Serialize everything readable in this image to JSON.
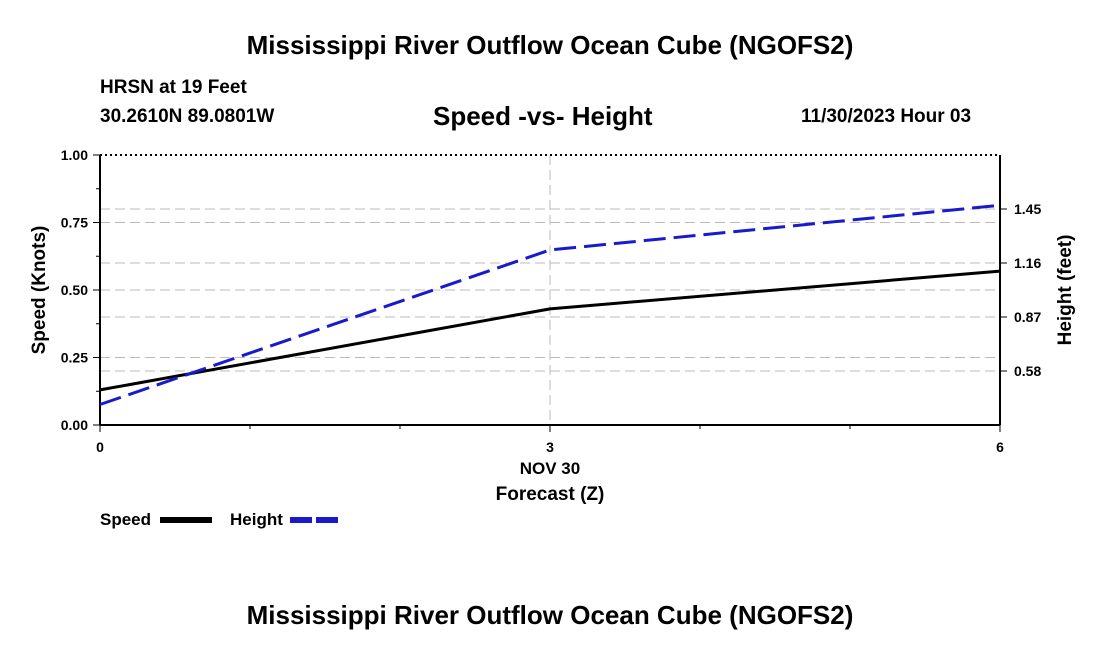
{
  "header": {
    "title": "Mississippi River Outflow Ocean Cube (NGOFS2)",
    "station": "HRSN at 19 Feet",
    "coords": "30.2610N  89.0801W",
    "date": "11/30/2023 Hour 03"
  },
  "footer": {
    "title": "Mississippi River Outflow Ocean Cube (NGOFS2)"
  },
  "colors": {
    "speed": "#000000",
    "height": "#1a1acc",
    "grid": "#bbbbbb"
  },
  "chart_data": {
    "type": "line",
    "title": "Speed -vs- Height",
    "xlabel": "Forecast (Z)",
    "x_date_label": "NOV 30",
    "ylabel": "Speed (Knots)",
    "y2label": "Height (feet)",
    "xlim": [
      0,
      6
    ],
    "ylim": [
      0,
      1
    ],
    "y2lim": [
      0.29,
      1.74
    ],
    "x_ticks": [
      0,
      3,
      6
    ],
    "x_tick_labels": [
      "0",
      "3",
      "6"
    ],
    "y_ticks": [
      0.0,
      0.25,
      0.5,
      0.75,
      1.0
    ],
    "y_tick_labels": [
      "0.00",
      "0.25",
      "0.50",
      "0.75",
      "1.00"
    ],
    "y2_ticks": [
      0.58,
      0.87,
      1.16,
      1.45
    ],
    "y2_tick_labels": [
      "0.58",
      "0.87",
      "1.16",
      "1.45"
    ],
    "series": [
      {
        "name": "Speed",
        "axis": "left",
        "style": "solid",
        "x": [
          0,
          3,
          6
        ],
        "values": [
          0.13,
          0.43,
          0.57
        ]
      },
      {
        "name": "Height",
        "axis": "right",
        "style": "dashed",
        "x": [
          0,
          3,
          6
        ],
        "values": [
          0.4,
          1.23,
          1.47
        ]
      }
    ],
    "legend": [
      "Speed",
      "Height"
    ],
    "legend_position": "bottom-left"
  }
}
